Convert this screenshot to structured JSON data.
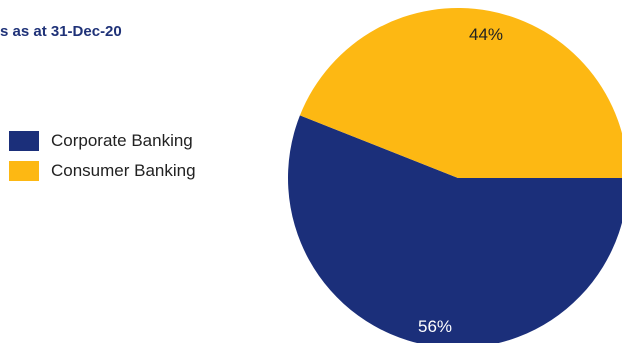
{
  "chart_data": {
    "type": "pie",
    "title": "s as at 31-Dec-20",
    "slices": [
      {
        "name": "Corporate Banking",
        "value": 56,
        "label": "56%",
        "color": "#1b2f7a"
      },
      {
        "name": "Consumer Banking",
        "value": 44,
        "label": "44%",
        "color": "#fdb813"
      }
    ],
    "legend_position": "left"
  }
}
